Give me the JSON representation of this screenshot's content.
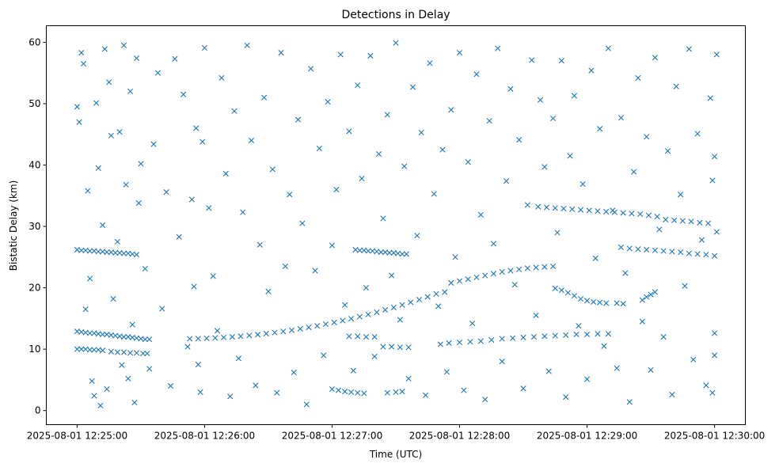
{
  "chart_data": {
    "type": "scatter",
    "title": "Detections in Delay",
    "xlabel": "Time (UTC)",
    "ylabel": "Bistatic Delay (km)",
    "x_units": "seconds after 2025-08-01 12:25:00",
    "xlim": [
      -14.5,
      314.5
    ],
    "ylim": [
      -2.3,
      62.7
    ],
    "grid": false,
    "marker": "x",
    "color": "#1f77b4",
    "x_ticks": [
      {
        "value": 0,
        "label": "2025-08-01 12:25:00"
      },
      {
        "value": 60,
        "label": "2025-08-01 12:26:00"
      },
      {
        "value": 120,
        "label": "2025-08-01 12:27:00"
      },
      {
        "value": 180,
        "label": "2025-08-01 12:28:00"
      },
      {
        "value": 240,
        "label": "2025-08-01 12:29:00"
      },
      {
        "value": 300,
        "label": "2025-08-01 12:30:00"
      }
    ],
    "y_ticks": [
      {
        "value": 0,
        "label": "0"
      },
      {
        "value": 10,
        "label": "10"
      },
      {
        "value": 20,
        "label": "20"
      },
      {
        "value": 30,
        "label": "30"
      },
      {
        "value": 40,
        "label": "40"
      },
      {
        "value": 50,
        "label": "50"
      },
      {
        "value": 60,
        "label": "60"
      }
    ],
    "points": [
      [
        0,
        26.2
      ],
      [
        2,
        26.1
      ],
      [
        4,
        26.1
      ],
      [
        6,
        26.0
      ],
      [
        8,
        26.0
      ],
      [
        10,
        25.9
      ],
      [
        12,
        25.9
      ],
      [
        14,
        25.8
      ],
      [
        16,
        25.8
      ],
      [
        18,
        25.7
      ],
      [
        20,
        25.7
      ],
      [
        22,
        25.6
      ],
      [
        24,
        25.6
      ],
      [
        26,
        25.5
      ],
      [
        28,
        25.4
      ],
      [
        0,
        12.9
      ],
      [
        2,
        12.8
      ],
      [
        4,
        12.7
      ],
      [
        6,
        12.6
      ],
      [
        8,
        12.6
      ],
      [
        10,
        12.5
      ],
      [
        12,
        12.4
      ],
      [
        14,
        12.4
      ],
      [
        16,
        12.3
      ],
      [
        18,
        12.2
      ],
      [
        20,
        12.1
      ],
      [
        22,
        12.0
      ],
      [
        24,
        12.0
      ],
      [
        26,
        11.9
      ],
      [
        28,
        11.8
      ],
      [
        30,
        11.7
      ],
      [
        32,
        11.6
      ],
      [
        34,
        11.6
      ],
      [
        53,
        11.7
      ],
      [
        57,
        11.73
      ],
      [
        61,
        11.77
      ],
      [
        65,
        11.83
      ],
      [
        69,
        11.91
      ],
      [
        73,
        12.0
      ],
      [
        77,
        12.11
      ],
      [
        81,
        12.23
      ],
      [
        85,
        12.37
      ],
      [
        89,
        12.53
      ],
      [
        93,
        12.7
      ],
      [
        97,
        12.89
      ],
      [
        101,
        13.09
      ],
      [
        105,
        13.31
      ],
      [
        109,
        13.55
      ],
      [
        113,
        13.8
      ],
      [
        117,
        14.07
      ],
      [
        121,
        14.35
      ],
      [
        125,
        14.65
      ],
      [
        129,
        14.97
      ],
      [
        133,
        15.3
      ],
      [
        137,
        15.65
      ],
      [
        141,
        16.01
      ],
      [
        145,
        16.39
      ],
      [
        149,
        16.79
      ],
      [
        153,
        17.2
      ],
      [
        157,
        17.63
      ],
      [
        161,
        18.07
      ],
      [
        165,
        18.53
      ],
      [
        169,
        19.0
      ],
      [
        173,
        19.3
      ],
      [
        176,
        20.8
      ],
      [
        180,
        21.1
      ],
      [
        184,
        21.4
      ],
      [
        188,
        21.7
      ],
      [
        192,
        22.0
      ],
      [
        196,
        22.3
      ],
      [
        200,
        22.6
      ],
      [
        204,
        22.8
      ],
      [
        208,
        23.0
      ],
      [
        212,
        23.2
      ],
      [
        216,
        23.3
      ],
      [
        220,
        23.4
      ],
      [
        224,
        23.5
      ],
      [
        0,
        10.0
      ],
      [
        2,
        10.0
      ],
      [
        4,
        10.0
      ],
      [
        6,
        9.9
      ],
      [
        8,
        9.9
      ],
      [
        10,
        9.9
      ],
      [
        12,
        9.8
      ],
      [
        16,
        9.6
      ],
      [
        19,
        9.5
      ],
      [
        22,
        9.5
      ],
      [
        25,
        9.4
      ],
      [
        28,
        9.4
      ],
      [
        31,
        9.3
      ],
      [
        33,
        9.3
      ],
      [
        131,
        26.2
      ],
      [
        133,
        26.1
      ],
      [
        135,
        26.1
      ],
      [
        137,
        26.0
      ],
      [
        139,
        26.0
      ],
      [
        141,
        25.9
      ],
      [
        143,
        25.8
      ],
      [
        145,
        25.8
      ],
      [
        147,
        25.7
      ],
      [
        149,
        25.7
      ],
      [
        151,
        25.6
      ],
      [
        153,
        25.5
      ],
      [
        155,
        25.5
      ],
      [
        217,
        33.2
      ],
      [
        221,
        33.1
      ],
      [
        225,
        33.0
      ],
      [
        229,
        32.9
      ],
      [
        233,
        32.8
      ],
      [
        237,
        32.7
      ],
      [
        241,
        32.6
      ],
      [
        245,
        32.5
      ],
      [
        249,
        32.4
      ],
      [
        253,
        32.3
      ],
      [
        257,
        32.2
      ],
      [
        261,
        32.1
      ],
      [
        265,
        32.0
      ],
      [
        269,
        31.8
      ],
      [
        273,
        31.6
      ],
      [
        277,
        31.1
      ],
      [
        281,
        31.0
      ],
      [
        285,
        30.9
      ],
      [
        289,
        30.8
      ],
      [
        293,
        30.6
      ],
      [
        297,
        30.5
      ],
      [
        256,
        26.6
      ],
      [
        260,
        26.4
      ],
      [
        264,
        26.3
      ],
      [
        268,
        26.2
      ],
      [
        272,
        26.1
      ],
      [
        276,
        26.0
      ],
      [
        280,
        25.9
      ],
      [
        284,
        25.8
      ],
      [
        288,
        25.6
      ],
      [
        292,
        25.5
      ],
      [
        296,
        25.4
      ],
      [
        300,
        25.2
      ],
      [
        225,
        19.9
      ],
      [
        228,
        19.6
      ],
      [
        231,
        19.2
      ],
      [
        234,
        18.7
      ],
      [
        237,
        18.2
      ],
      [
        240,
        17.9
      ],
      [
        243,
        17.7
      ],
      [
        246,
        17.6
      ],
      [
        249,
        17.5
      ],
      [
        254,
        17.5
      ],
      [
        257,
        17.4
      ],
      [
        266,
        18.0
      ],
      [
        268,
        18.5
      ],
      [
        270,
        18.9
      ],
      [
        272,
        19.3
      ],
      [
        171,
        10.8
      ],
      [
        175,
        11.0
      ],
      [
        180,
        11.1
      ],
      [
        185,
        11.2
      ],
      [
        190,
        11.3
      ],
      [
        195,
        11.5
      ],
      [
        200,
        11.7
      ],
      [
        205,
        11.8
      ],
      [
        210,
        11.9
      ],
      [
        215,
        12.0
      ],
      [
        220,
        12.1
      ],
      [
        225,
        12.2
      ],
      [
        230,
        12.3
      ],
      [
        235,
        12.4
      ],
      [
        240,
        12.4
      ],
      [
        245,
        12.5
      ],
      [
        250,
        12.5
      ],
      [
        128,
        12.1
      ],
      [
        132,
        12.1
      ],
      [
        136,
        12.0
      ],
      [
        140,
        12.0
      ],
      [
        144,
        10.4
      ],
      [
        148,
        10.4
      ],
      [
        152,
        10.3
      ],
      [
        156,
        10.3
      ],
      [
        120,
        3.5
      ],
      [
        123,
        3.3
      ],
      [
        126,
        3.1
      ],
      [
        129,
        3.0
      ],
      [
        132,
        2.9
      ],
      [
        135,
        2.8
      ],
      [
        146,
        2.9
      ],
      [
        150,
        3.0
      ],
      [
        153,
        3.1
      ],
      [
        0,
        49.5
      ],
      [
        1,
        47.0
      ],
      [
        2,
        58.3
      ],
      [
        3,
        56.5
      ],
      [
        5,
        35.8
      ],
      [
        6,
        21.5
      ],
      [
        4,
        16.5
      ],
      [
        7,
        4.8
      ],
      [
        8,
        2.4
      ],
      [
        9,
        50.1
      ],
      [
        10,
        39.5
      ],
      [
        11,
        0.8
      ],
      [
        12,
        30.2
      ],
      [
        13,
        58.9
      ],
      [
        14,
        3.5
      ],
      [
        15,
        53.5
      ],
      [
        16,
        44.8
      ],
      [
        17,
        18.2
      ],
      [
        19,
        27.5
      ],
      [
        20,
        45.4
      ],
      [
        21,
        7.4
      ],
      [
        22,
        59.5
      ],
      [
        23,
        36.8
      ],
      [
        24,
        5.2
      ],
      [
        25,
        52.0
      ],
      [
        26,
        14.0
      ],
      [
        27,
        1.3
      ],
      [
        28,
        57.4
      ],
      [
        29,
        33.8
      ],
      [
        30,
        40.2
      ],
      [
        32,
        23.1
      ],
      [
        34,
        6.8
      ],
      [
        36,
        43.4
      ],
      [
        38,
        55.0
      ],
      [
        40,
        16.6
      ],
      [
        42,
        35.6
      ],
      [
        44,
        4.0
      ],
      [
        46,
        57.3
      ],
      [
        48,
        28.3
      ],
      [
        50,
        51.5
      ],
      [
        52,
        10.4
      ],
      [
        54,
        34.4
      ],
      [
        55,
        20.2
      ],
      [
        56,
        46.0
      ],
      [
        57,
        7.5
      ],
      [
        58,
        3.0
      ],
      [
        59,
        43.8
      ],
      [
        60,
        59.1
      ],
      [
        62,
        33.0
      ],
      [
        64,
        21.9
      ],
      [
        66,
        13.0
      ],
      [
        68,
        54.2
      ],
      [
        70,
        38.6
      ],
      [
        72,
        2.3
      ],
      [
        74,
        48.8
      ],
      [
        76,
        8.5
      ],
      [
        78,
        32.3
      ],
      [
        80,
        59.5
      ],
      [
        82,
        44.0
      ],
      [
        84,
        4.1
      ],
      [
        86,
        27.0
      ],
      [
        88,
        51.0
      ],
      [
        90,
        19.4
      ],
      [
        92,
        39.3
      ],
      [
        94,
        2.9
      ],
      [
        96,
        58.3
      ],
      [
        98,
        23.5
      ],
      [
        100,
        35.2
      ],
      [
        102,
        6.2
      ],
      [
        104,
        47.4
      ],
      [
        106,
        30.5
      ],
      [
        108,
        1.0
      ],
      [
        110,
        55.7
      ],
      [
        112,
        22.8
      ],
      [
        114,
        42.7
      ],
      [
        116,
        9.0
      ],
      [
        118,
        50.3
      ],
      [
        120,
        26.9
      ],
      [
        122,
        36.0
      ],
      [
        124,
        58.0
      ],
      [
        126,
        17.2
      ],
      [
        128,
        45.5
      ],
      [
        130,
        6.5
      ],
      [
        132,
        53.0
      ],
      [
        134,
        37.8
      ],
      [
        136,
        20.0
      ],
      [
        138,
        57.8
      ],
      [
        140,
        8.8
      ],
      [
        142,
        41.8
      ],
      [
        144,
        31.3
      ],
      [
        146,
        48.2
      ],
      [
        148,
        22.0
      ],
      [
        150,
        59.9
      ],
      [
        152,
        14.8
      ],
      [
        154,
        39.8
      ],
      [
        156,
        5.2
      ],
      [
        158,
        52.7
      ],
      [
        160,
        28.5
      ],
      [
        162,
        45.3
      ],
      [
        164,
        2.5
      ],
      [
        166,
        56.6
      ],
      [
        168,
        35.3
      ],
      [
        170,
        17.0
      ],
      [
        172,
        42.5
      ],
      [
        174,
        6.3
      ],
      [
        176,
        49.0
      ],
      [
        178,
        25.0
      ],
      [
        180,
        58.3
      ],
      [
        182,
        3.3
      ],
      [
        184,
        40.5
      ],
      [
        186,
        14.2
      ],
      [
        188,
        54.8
      ],
      [
        190,
        31.9
      ],
      [
        192,
        1.8
      ],
      [
        194,
        47.2
      ],
      [
        196,
        27.2
      ],
      [
        198,
        59.0
      ],
      [
        200,
        8.0
      ],
      [
        202,
        37.4
      ],
      [
        204,
        52.4
      ],
      [
        206,
        20.5
      ],
      [
        208,
        44.1
      ],
      [
        210,
        3.6
      ],
      [
        212,
        33.5
      ],
      [
        214,
        57.1
      ],
      [
        216,
        15.5
      ],
      [
        218,
        50.6
      ],
      [
        220,
        39.7
      ],
      [
        222,
        6.4
      ],
      [
        224,
        47.6
      ],
      [
        226,
        29.0
      ],
      [
        228,
        57.0
      ],
      [
        230,
        2.2
      ],
      [
        232,
        41.5
      ],
      [
        234,
        51.3
      ],
      [
        236,
        13.8
      ],
      [
        238,
        36.9
      ],
      [
        240,
        5.1
      ],
      [
        242,
        55.4
      ],
      [
        244,
        24.8
      ],
      [
        246,
        45.9
      ],
      [
        248,
        10.5
      ],
      [
        250,
        59.0
      ],
      [
        252,
        32.6
      ],
      [
        254,
        6.9
      ],
      [
        256,
        47.7
      ],
      [
        258,
        22.4
      ],
      [
        260,
        1.4
      ],
      [
        262,
        38.9
      ],
      [
        264,
        54.2
      ],
      [
        266,
        14.5
      ],
      [
        268,
        44.6
      ],
      [
        270,
        6.6
      ],
      [
        272,
        57.5
      ],
      [
        274,
        29.5
      ],
      [
        276,
        12.0
      ],
      [
        278,
        42.3
      ],
      [
        280,
        2.6
      ],
      [
        282,
        52.8
      ],
      [
        284,
        35.2
      ],
      [
        286,
        20.3
      ],
      [
        288,
        58.9
      ],
      [
        290,
        8.3
      ],
      [
        292,
        45.1
      ],
      [
        294,
        27.8
      ],
      [
        296,
        4.1
      ],
      [
        298,
        50.9
      ],
      [
        299,
        37.5
      ],
      [
        300,
        9.0
      ],
      [
        301,
        58.0
      ],
      [
        300,
        41.4
      ],
      [
        301,
        29.1
      ],
      [
        300,
        12.6
      ],
      [
        299,
        2.9
      ]
    ]
  }
}
